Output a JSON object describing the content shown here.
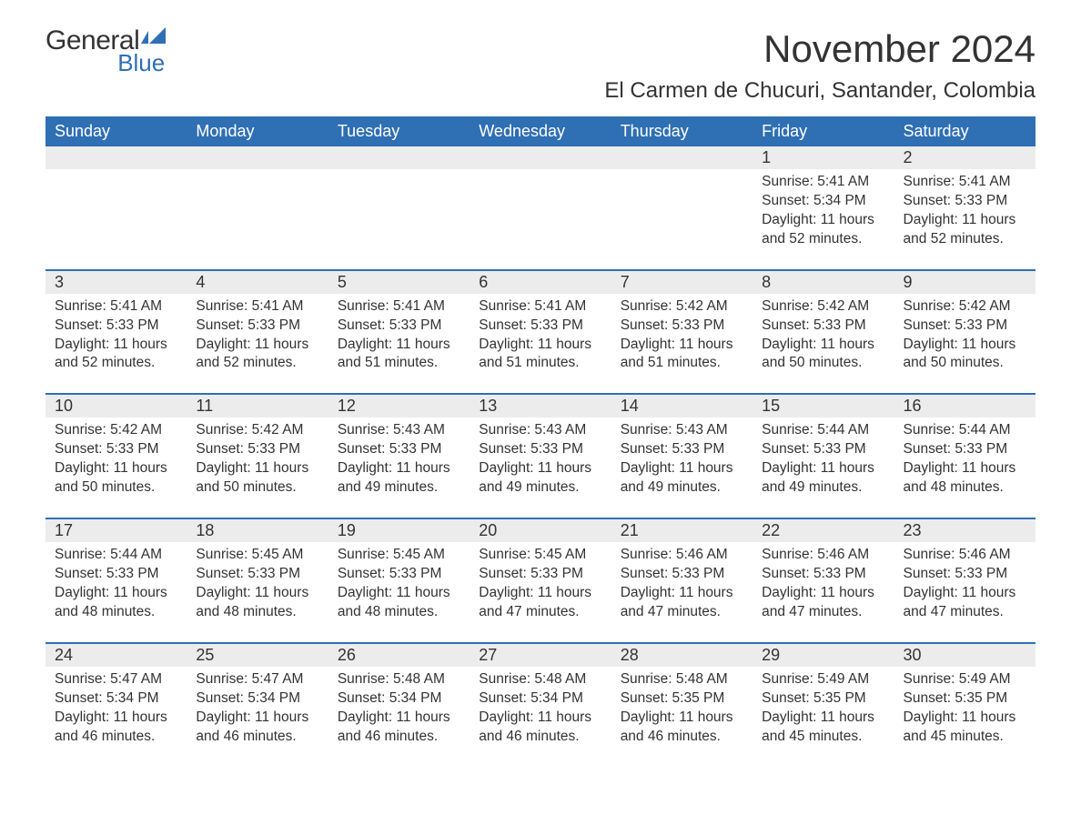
{
  "brand": {
    "word1": "General",
    "word2": "Blue",
    "accent_hex": "#2f6fb4"
  },
  "title": "November 2024",
  "subtitle": "El Carmen de Chucuri, Santander, Colombia",
  "colors": {
    "header_bg": "#2f6fb4",
    "header_text": "#ffffff",
    "daynum_bg": "#ececec",
    "border": "#2f6fb4",
    "body_text": "#333333",
    "page_bg": "#ffffff"
  },
  "typography": {
    "title_fontsize": 42,
    "subtitle_fontsize": 24,
    "header_fontsize": 18,
    "daynum_fontsize": 18,
    "body_fontsize": 15.5,
    "font_family": "Arial"
  },
  "layout": {
    "columns": 7,
    "rows": 5
  },
  "day_headers": [
    "Sunday",
    "Monday",
    "Tuesday",
    "Wednesday",
    "Thursday",
    "Friday",
    "Saturday"
  ],
  "line_labels": {
    "sunrise": "Sunrise:",
    "sunset": "Sunset:",
    "daylight": "Daylight:"
  },
  "weeks": [
    [
      null,
      null,
      null,
      null,
      null,
      {
        "d": "1",
        "sunrise": "5:41 AM",
        "sunset": "5:34 PM",
        "daylight": "11 hours and 52 minutes."
      },
      {
        "d": "2",
        "sunrise": "5:41 AM",
        "sunset": "5:33 PM",
        "daylight": "11 hours and 52 minutes."
      }
    ],
    [
      {
        "d": "3",
        "sunrise": "5:41 AM",
        "sunset": "5:33 PM",
        "daylight": "11 hours and 52 minutes."
      },
      {
        "d": "4",
        "sunrise": "5:41 AM",
        "sunset": "5:33 PM",
        "daylight": "11 hours and 52 minutes."
      },
      {
        "d": "5",
        "sunrise": "5:41 AM",
        "sunset": "5:33 PM",
        "daylight": "11 hours and 51 minutes."
      },
      {
        "d": "6",
        "sunrise": "5:41 AM",
        "sunset": "5:33 PM",
        "daylight": "11 hours and 51 minutes."
      },
      {
        "d": "7",
        "sunrise": "5:42 AM",
        "sunset": "5:33 PM",
        "daylight": "11 hours and 51 minutes."
      },
      {
        "d": "8",
        "sunrise": "5:42 AM",
        "sunset": "5:33 PM",
        "daylight": "11 hours and 50 minutes."
      },
      {
        "d": "9",
        "sunrise": "5:42 AM",
        "sunset": "5:33 PM",
        "daylight": "11 hours and 50 minutes."
      }
    ],
    [
      {
        "d": "10",
        "sunrise": "5:42 AM",
        "sunset": "5:33 PM",
        "daylight": "11 hours and 50 minutes."
      },
      {
        "d": "11",
        "sunrise": "5:42 AM",
        "sunset": "5:33 PM",
        "daylight": "11 hours and 50 minutes."
      },
      {
        "d": "12",
        "sunrise": "5:43 AM",
        "sunset": "5:33 PM",
        "daylight": "11 hours and 49 minutes."
      },
      {
        "d": "13",
        "sunrise": "5:43 AM",
        "sunset": "5:33 PM",
        "daylight": "11 hours and 49 minutes."
      },
      {
        "d": "14",
        "sunrise": "5:43 AM",
        "sunset": "5:33 PM",
        "daylight": "11 hours and 49 minutes."
      },
      {
        "d": "15",
        "sunrise": "5:44 AM",
        "sunset": "5:33 PM",
        "daylight": "11 hours and 49 minutes."
      },
      {
        "d": "16",
        "sunrise": "5:44 AM",
        "sunset": "5:33 PM",
        "daylight": "11 hours and 48 minutes."
      }
    ],
    [
      {
        "d": "17",
        "sunrise": "5:44 AM",
        "sunset": "5:33 PM",
        "daylight": "11 hours and 48 minutes."
      },
      {
        "d": "18",
        "sunrise": "5:45 AM",
        "sunset": "5:33 PM",
        "daylight": "11 hours and 48 minutes."
      },
      {
        "d": "19",
        "sunrise": "5:45 AM",
        "sunset": "5:33 PM",
        "daylight": "11 hours and 48 minutes."
      },
      {
        "d": "20",
        "sunrise": "5:45 AM",
        "sunset": "5:33 PM",
        "daylight": "11 hours and 47 minutes."
      },
      {
        "d": "21",
        "sunrise": "5:46 AM",
        "sunset": "5:33 PM",
        "daylight": "11 hours and 47 minutes."
      },
      {
        "d": "22",
        "sunrise": "5:46 AM",
        "sunset": "5:33 PM",
        "daylight": "11 hours and 47 minutes."
      },
      {
        "d": "23",
        "sunrise": "5:46 AM",
        "sunset": "5:33 PM",
        "daylight": "11 hours and 47 minutes."
      }
    ],
    [
      {
        "d": "24",
        "sunrise": "5:47 AM",
        "sunset": "5:34 PM",
        "daylight": "11 hours and 46 minutes."
      },
      {
        "d": "25",
        "sunrise": "5:47 AM",
        "sunset": "5:34 PM",
        "daylight": "11 hours and 46 minutes."
      },
      {
        "d": "26",
        "sunrise": "5:48 AM",
        "sunset": "5:34 PM",
        "daylight": "11 hours and 46 minutes."
      },
      {
        "d": "27",
        "sunrise": "5:48 AM",
        "sunset": "5:34 PM",
        "daylight": "11 hours and 46 minutes."
      },
      {
        "d": "28",
        "sunrise": "5:48 AM",
        "sunset": "5:35 PM",
        "daylight": "11 hours and 46 minutes."
      },
      {
        "d": "29",
        "sunrise": "5:49 AM",
        "sunset": "5:35 PM",
        "daylight": "11 hours and 45 minutes."
      },
      {
        "d": "30",
        "sunrise": "5:49 AM",
        "sunset": "5:35 PM",
        "daylight": "11 hours and 45 minutes."
      }
    ]
  ]
}
